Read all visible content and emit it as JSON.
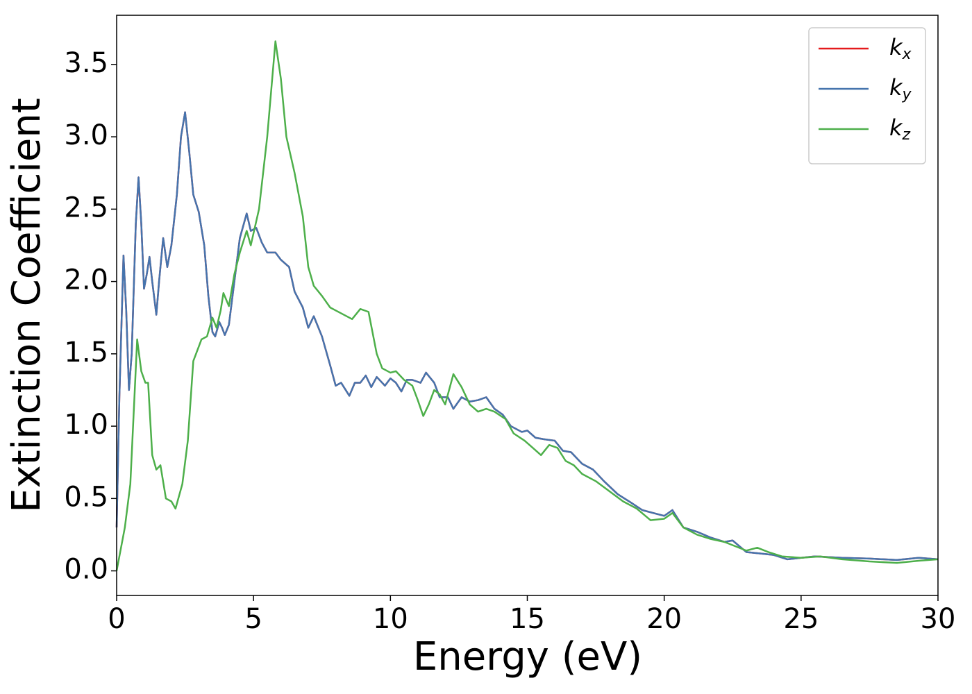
{
  "chart_data": {
    "type": "line",
    "xlabel": "Energy (eV)",
    "ylabel": "Extinction Coefficient",
    "xlim": [
      0,
      30
    ],
    "xticks": [
      0,
      5,
      10,
      15,
      20,
      25,
      30
    ],
    "ylim": [
      -0.17,
      3.84
    ],
    "yticks": [
      {
        "value": 0,
        "label": "0.0"
      },
      0.5,
      {
        "value": 1,
        "label": "1.0"
      },
      1.5,
      {
        "value": 2,
        "label": "2.0"
      },
      2.5,
      {
        "value": 3,
        "label": "3.0"
      },
      3.5
    ],
    "legend": "upper right",
    "series": [
      {
        "name": "kx",
        "color": "#e41a1c",
        "x": [
          0.0,
          0.1,
          0.25,
          0.35,
          0.45,
          0.55,
          0.7,
          0.8,
          0.9,
          1.0,
          1.1,
          1.2,
          1.3,
          1.45,
          1.55,
          1.7,
          1.85,
          2.0,
          2.2,
          2.35,
          2.5,
          2.65,
          2.8,
          3.0,
          3.2,
          3.35,
          3.5,
          3.6,
          3.75,
          3.85,
          3.95,
          4.1,
          4.3,
          4.5,
          4.75,
          4.9,
          5.1,
          5.3,
          5.5,
          5.8,
          6.0,
          6.3,
          6.5,
          6.8,
          7.0,
          7.2,
          7.5,
          7.8,
          8.0,
          8.2,
          8.5,
          8.7,
          8.9,
          9.1,
          9.3,
          9.5,
          9.8,
          10.0,
          10.2,
          10.4,
          10.6,
          10.8,
          11.1,
          11.3,
          11.6,
          11.8,
          12.1,
          12.3,
          12.6,
          12.9,
          13.2,
          13.5,
          13.8,
          14.1,
          14.4,
          14.8,
          15.0,
          15.3,
          15.6,
          16.0,
          16.3,
          16.6,
          17.0,
          17.4,
          17.8,
          18.3,
          18.8,
          19.2,
          19.6,
          20.0,
          20.3,
          20.7,
          21.2,
          21.7,
          22.2,
          22.5,
          23.0,
          23.5,
          24.0,
          24.5,
          25.0,
          25.5,
          26.5,
          27.5,
          28.5,
          29.3,
          30.0
        ],
        "values": [
          0.3,
          1.2,
          2.18,
          1.8,
          1.25,
          1.5,
          2.4,
          2.72,
          2.4,
          1.95,
          2.05,
          2.17,
          2.0,
          1.77,
          2.0,
          2.3,
          2.1,
          2.25,
          2.6,
          3.0,
          3.17,
          2.9,
          2.6,
          2.48,
          2.25,
          1.9,
          1.65,
          1.62,
          1.72,
          1.68,
          1.63,
          1.7,
          2.0,
          2.3,
          2.47,
          2.35,
          2.37,
          2.27,
          2.2,
          2.2,
          2.15,
          2.1,
          1.93,
          1.82,
          1.68,
          1.76,
          1.62,
          1.42,
          1.28,
          1.3,
          1.21,
          1.3,
          1.3,
          1.35,
          1.27,
          1.34,
          1.28,
          1.33,
          1.3,
          1.24,
          1.32,
          1.32,
          1.3,
          1.37,
          1.3,
          1.2,
          1.2,
          1.12,
          1.2,
          1.17,
          1.18,
          1.2,
          1.12,
          1.08,
          1.0,
          0.96,
          0.97,
          0.92,
          0.91,
          0.9,
          0.83,
          0.82,
          0.74,
          0.7,
          0.62,
          0.53,
          0.47,
          0.42,
          0.4,
          0.38,
          0.42,
          0.3,
          0.27,
          0.23,
          0.2,
          0.21,
          0.13,
          0.12,
          0.11,
          0.08,
          0.09,
          0.1,
          0.09,
          0.085,
          0.075,
          0.09,
          0.08
        ]
      },
      {
        "name": "ky",
        "color": "#4574ad",
        "x": [
          0.0,
          0.1,
          0.25,
          0.35,
          0.45,
          0.55,
          0.7,
          0.8,
          0.9,
          1.0,
          1.1,
          1.2,
          1.3,
          1.45,
          1.55,
          1.7,
          1.85,
          2.0,
          2.2,
          2.35,
          2.5,
          2.65,
          2.8,
          3.0,
          3.2,
          3.35,
          3.5,
          3.6,
          3.75,
          3.85,
          3.95,
          4.1,
          4.3,
          4.5,
          4.75,
          4.9,
          5.1,
          5.3,
          5.5,
          5.8,
          6.0,
          6.3,
          6.5,
          6.8,
          7.0,
          7.2,
          7.5,
          7.8,
          8.0,
          8.2,
          8.5,
          8.7,
          8.9,
          9.1,
          9.3,
          9.5,
          9.8,
          10.0,
          10.2,
          10.4,
          10.6,
          10.8,
          11.1,
          11.3,
          11.6,
          11.8,
          12.1,
          12.3,
          12.6,
          12.9,
          13.2,
          13.5,
          13.8,
          14.1,
          14.4,
          14.8,
          15.0,
          15.3,
          15.6,
          16.0,
          16.3,
          16.6,
          17.0,
          17.4,
          17.8,
          18.3,
          18.8,
          19.2,
          19.6,
          20.0,
          20.3,
          20.7,
          21.2,
          21.7,
          22.2,
          22.5,
          23.0,
          23.5,
          24.0,
          24.5,
          25.0,
          25.5,
          26.5,
          27.5,
          28.5,
          29.3,
          30.0
        ],
        "values": [
          0.3,
          1.2,
          2.18,
          1.8,
          1.25,
          1.5,
          2.4,
          2.72,
          2.4,
          1.95,
          2.05,
          2.17,
          2.0,
          1.77,
          2.0,
          2.3,
          2.1,
          2.25,
          2.6,
          3.0,
          3.17,
          2.9,
          2.6,
          2.48,
          2.25,
          1.9,
          1.65,
          1.62,
          1.72,
          1.68,
          1.63,
          1.7,
          2.0,
          2.3,
          2.47,
          2.35,
          2.37,
          2.27,
          2.2,
          2.2,
          2.15,
          2.1,
          1.93,
          1.82,
          1.68,
          1.76,
          1.62,
          1.42,
          1.28,
          1.3,
          1.21,
          1.3,
          1.3,
          1.35,
          1.27,
          1.34,
          1.28,
          1.33,
          1.3,
          1.24,
          1.32,
          1.32,
          1.3,
          1.37,
          1.3,
          1.2,
          1.2,
          1.12,
          1.2,
          1.17,
          1.18,
          1.2,
          1.12,
          1.08,
          1.0,
          0.96,
          0.97,
          0.92,
          0.91,
          0.9,
          0.83,
          0.82,
          0.74,
          0.7,
          0.62,
          0.53,
          0.47,
          0.42,
          0.4,
          0.38,
          0.42,
          0.3,
          0.27,
          0.23,
          0.2,
          0.21,
          0.13,
          0.12,
          0.11,
          0.08,
          0.09,
          0.1,
          0.09,
          0.085,
          0.075,
          0.09,
          0.08
        ]
      },
      {
        "name": "kz",
        "color": "#4daf4a",
        "x": [
          0.0,
          0.3,
          0.5,
          0.65,
          0.75,
          0.9,
          1.05,
          1.15,
          1.3,
          1.45,
          1.6,
          1.8,
          2.0,
          2.15,
          2.4,
          2.6,
          2.8,
          3.0,
          3.1,
          3.3,
          3.5,
          3.65,
          3.8,
          3.9,
          4.1,
          4.3,
          4.5,
          4.75,
          4.9,
          5.2,
          5.5,
          5.8,
          6.0,
          6.2,
          6.5,
          6.8,
          7.0,
          7.2,
          7.5,
          7.8,
          8.0,
          8.3,
          8.6,
          8.9,
          9.2,
          9.5,
          9.7,
          10.0,
          10.2,
          10.5,
          10.8,
          11.0,
          11.2,
          11.4,
          11.6,
          11.8,
          12.0,
          12.3,
          12.6,
          12.9,
          13.2,
          13.5,
          13.8,
          14.2,
          14.5,
          14.9,
          15.2,
          15.5,
          15.8,
          16.1,
          16.4,
          16.7,
          17.0,
          17.5,
          18.0,
          18.5,
          19.0,
          19.5,
          20.0,
          20.3,
          20.7,
          21.2,
          21.7,
          22.2,
          22.6,
          23.0,
          23.4,
          23.8,
          24.3,
          25.0,
          25.7,
          26.5,
          27.5,
          28.5,
          29.3,
          30.0
        ],
        "values": [
          0.0,
          0.3,
          0.6,
          1.2,
          1.6,
          1.38,
          1.3,
          1.3,
          0.8,
          0.7,
          0.73,
          0.5,
          0.48,
          0.43,
          0.6,
          0.9,
          1.45,
          1.55,
          1.6,
          1.62,
          1.75,
          1.68,
          1.8,
          1.92,
          1.83,
          2.05,
          2.2,
          2.35,
          2.25,
          2.5,
          3.0,
          3.66,
          3.4,
          3.0,
          2.75,
          2.45,
          2.1,
          1.97,
          1.9,
          1.82,
          1.8,
          1.77,
          1.74,
          1.81,
          1.79,
          1.5,
          1.4,
          1.37,
          1.38,
          1.32,
          1.28,
          1.18,
          1.07,
          1.15,
          1.25,
          1.22,
          1.15,
          1.36,
          1.27,
          1.15,
          1.1,
          1.12,
          1.1,
          1.05,
          0.95,
          0.9,
          0.85,
          0.8,
          0.87,
          0.85,
          0.76,
          0.73,
          0.67,
          0.62,
          0.55,
          0.48,
          0.43,
          0.35,
          0.36,
          0.4,
          0.3,
          0.25,
          0.22,
          0.2,
          0.17,
          0.14,
          0.16,
          0.13,
          0.1,
          0.09,
          0.1,
          0.08,
          0.065,
          0.055,
          0.07,
          0.08
        ]
      }
    ]
  }
}
